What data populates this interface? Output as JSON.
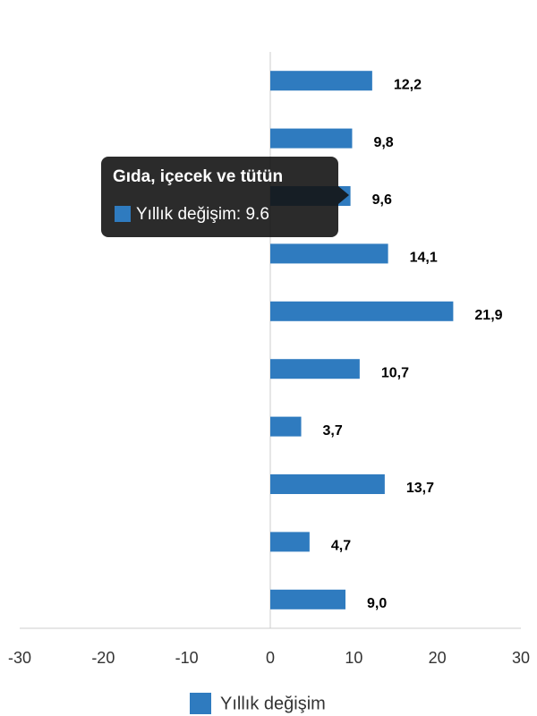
{
  "chart_data": {
    "type": "bar",
    "orientation": "horizontal",
    "categories": [
      null,
      null,
      "Gıda, içecek ve tütün",
      null,
      null,
      null,
      null,
      null,
      null,
      null
    ],
    "series": [
      {
        "name": "Yıllık değişim",
        "color": "#2f7bbf",
        "values": [
          12.2,
          9.8,
          9.6,
          14.1,
          21.9,
          10.7,
          3.7,
          13.7,
          4.7,
          9.0
        ],
        "value_labels": [
          "12,2",
          "9,8",
          "9,6",
          "14,1",
          "21,9",
          "10,7",
          "3,7",
          "13,7",
          "4,7",
          "9,0"
        ]
      }
    ],
    "xlim": [
      -30,
      30
    ],
    "xticks": [
      -30,
      -20,
      -10,
      0,
      10,
      20,
      30
    ],
    "tooltip": {
      "category_index": 2,
      "text": "Yıllık değişim: 9.6"
    },
    "legend": "bottom"
  }
}
